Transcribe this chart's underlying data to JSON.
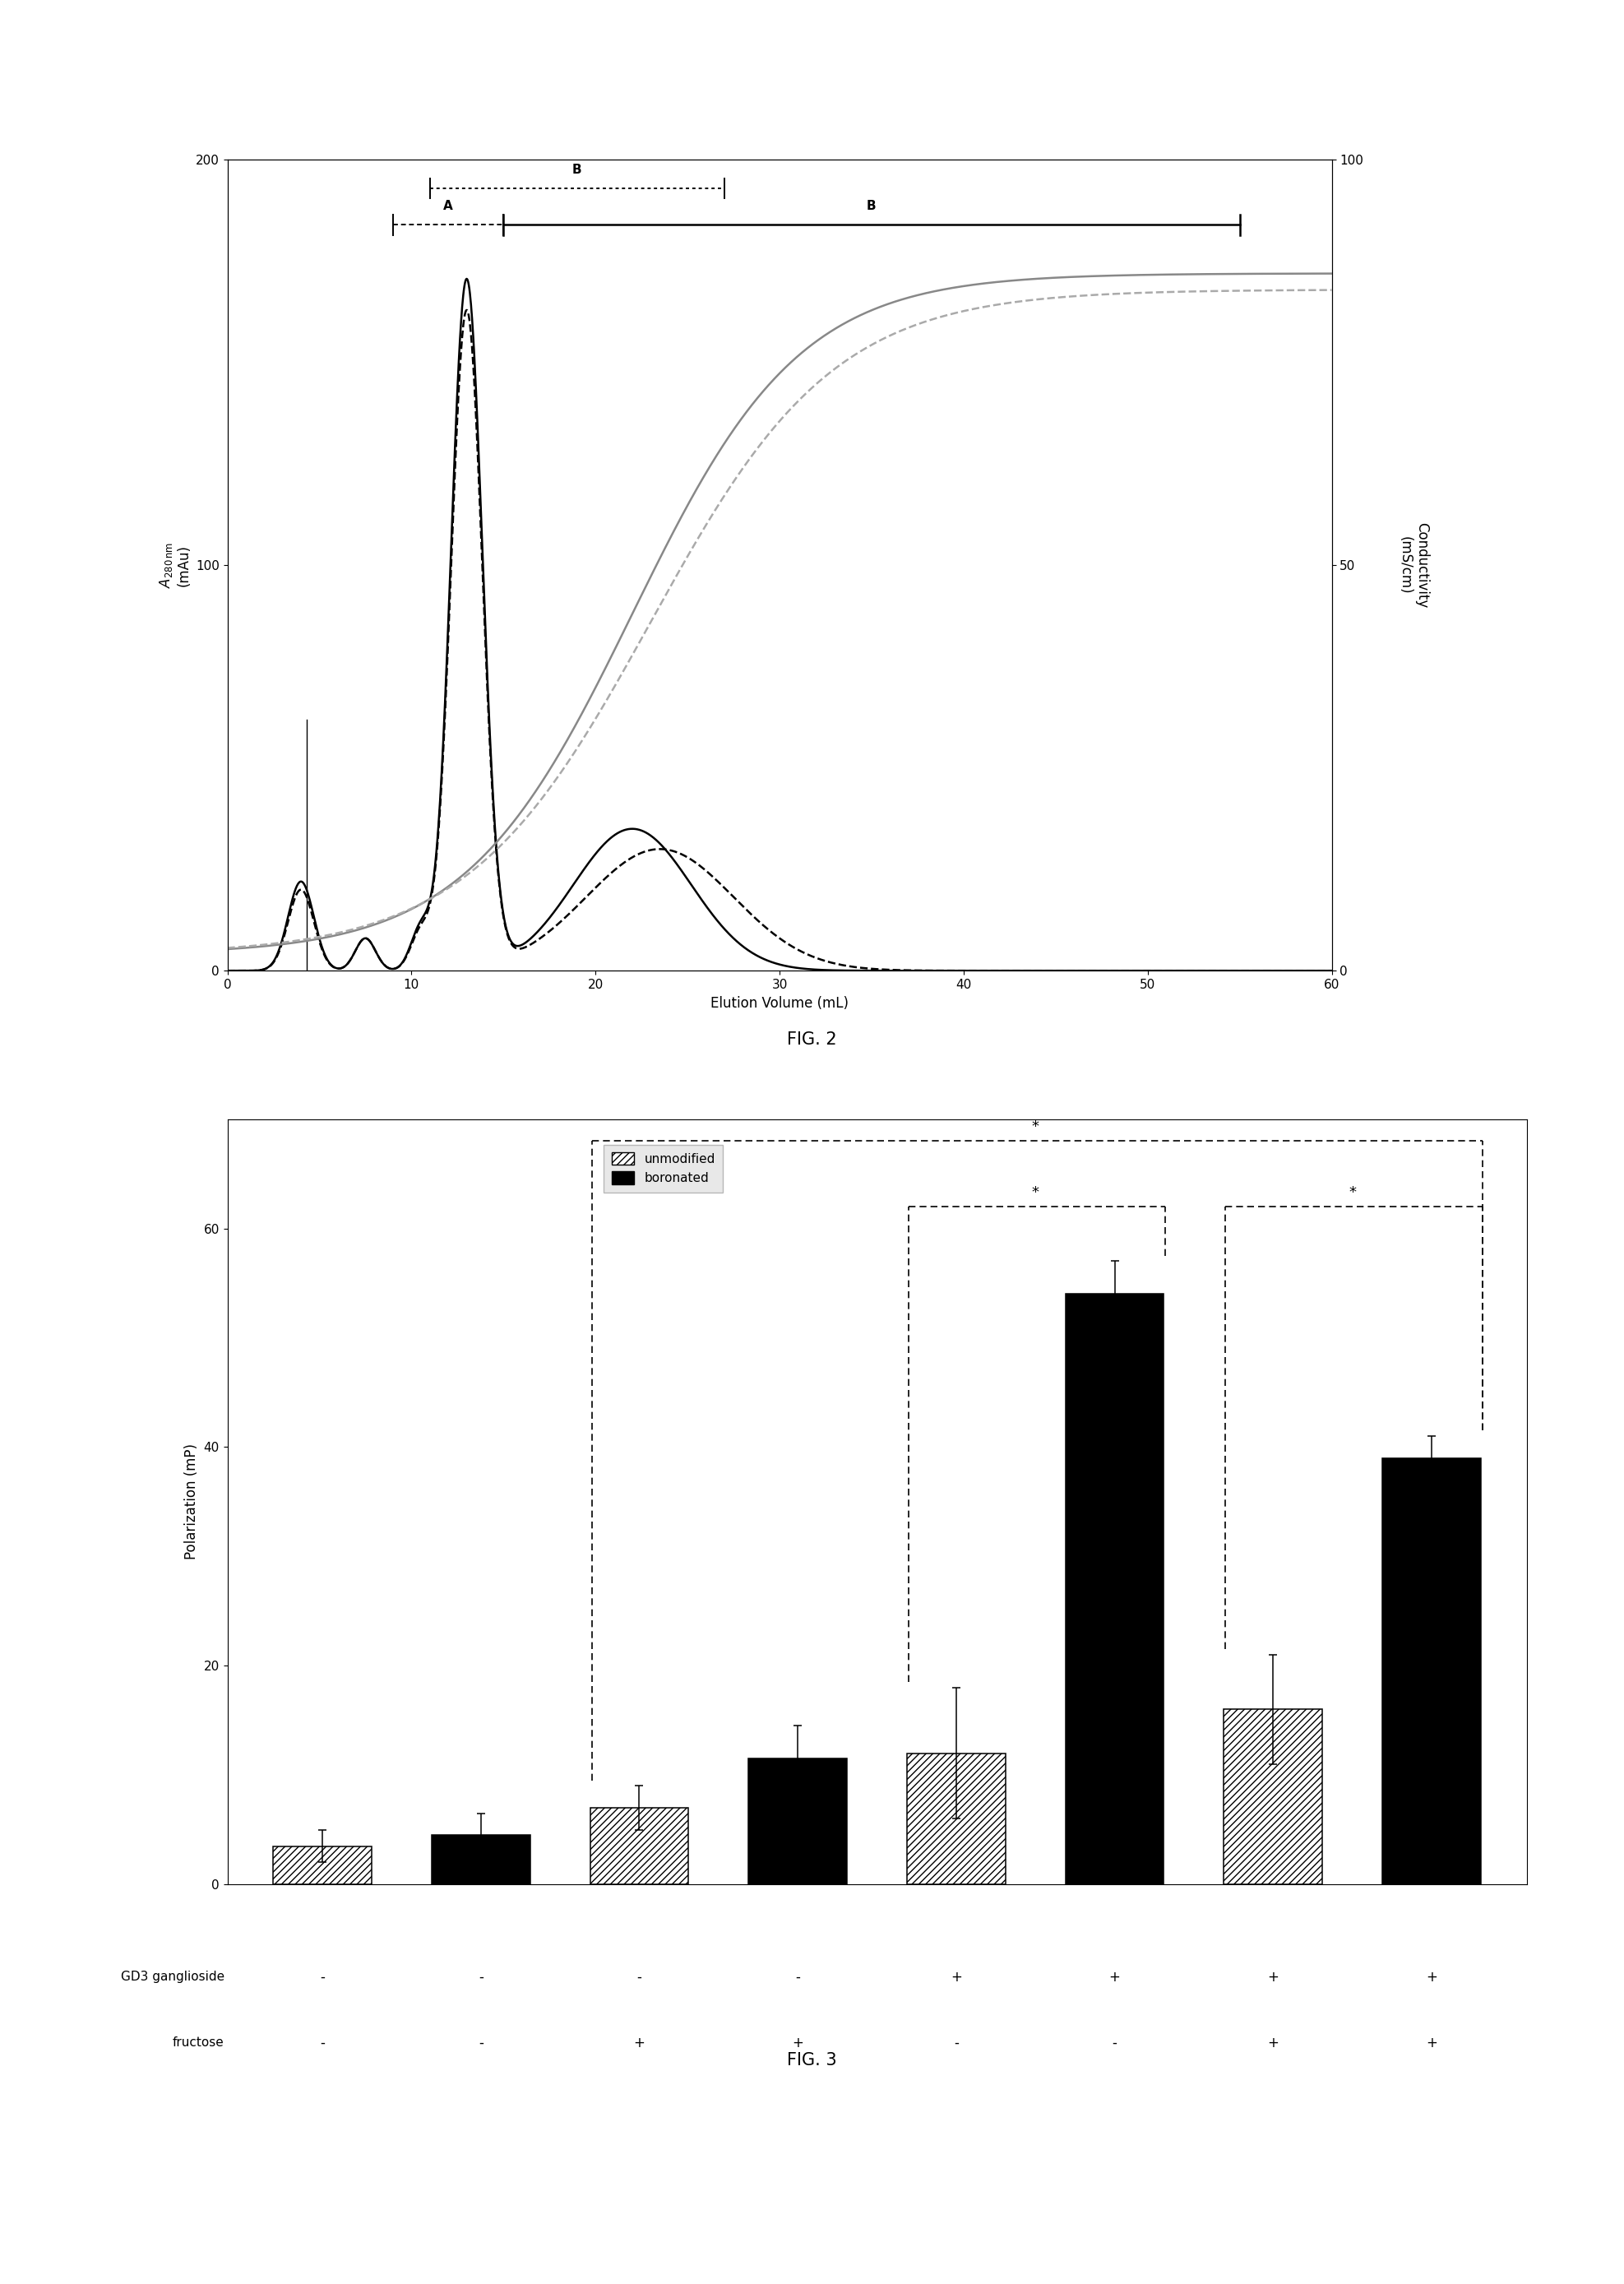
{
  "fig2": {
    "xlabel": "Elution Volume (mL)",
    "ylabel_left": "$A_{280\\,\\mathrm{nm}}$\n(mAu)",
    "ylabel_right": "Conductivity\n(mS/cm)",
    "xlim": [
      0,
      60
    ],
    "ylim_left": [
      0,
      200
    ],
    "ylim_right": [
      0,
      100
    ],
    "yticks_left": [
      0,
      100,
      200
    ],
    "yticks_right": [
      0,
      50,
      100
    ],
    "xticks": [
      0,
      10,
      20,
      30,
      40,
      50,
      60
    ]
  },
  "fig3": {
    "ylabel": "Polarization (mP)",
    "ylim": [
      0,
      70
    ],
    "yticks": [
      0,
      20,
      40,
      60
    ],
    "bar_heights": [
      3.5,
      4.5,
      7.0,
      11.5,
      12.0,
      54.0,
      16.0,
      39.0
    ],
    "bar_errors": [
      1.5,
      2.0,
      2.0,
      3.0,
      6.0,
      3.0,
      5.0,
      2.0
    ],
    "bar_types": [
      "unmod",
      "boron",
      "unmod",
      "boron",
      "unmod",
      "boron",
      "unmod",
      "boron"
    ],
    "gd3_labels": [
      "-",
      "-",
      "-",
      "-",
      "+",
      "+",
      "+",
      "+"
    ],
    "fructose_labels": [
      "-",
      "-",
      "+",
      "+",
      "-",
      "-",
      "+",
      "+"
    ]
  }
}
